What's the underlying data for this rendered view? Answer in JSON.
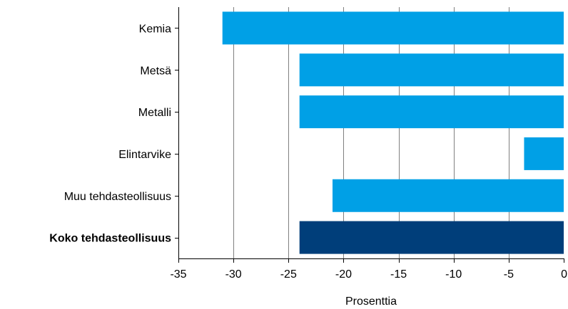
{
  "chart_data": {
    "type": "bar",
    "orientation": "horizontal",
    "categories": [
      "Kemia",
      "Metsä",
      "Metalli",
      "Elintarvike",
      "Muu tehdasteollisuus",
      "Koko tehdasteollisuus"
    ],
    "values": [
      -31,
      -24,
      -24,
      -3.6,
      -21,
      -24
    ],
    "bold_categories": [
      "Koko tehdasteollisuus"
    ],
    "xlim": [
      -35,
      0
    ],
    "xticks": [
      "-35",
      "-30",
      "-25",
      "-20",
      "-15",
      "-10",
      "-5",
      "0"
    ],
    "xtick_values": [
      -35,
      -30,
      -25,
      -20,
      -15,
      -10,
      -5,
      0
    ],
    "xlabel": "Prosenttia",
    "grid": "vertical",
    "colors": {
      "bar": "#00a0e6",
      "bar_highlight": "#003e7a",
      "grid": "#808080",
      "axis": "#000000"
    }
  }
}
